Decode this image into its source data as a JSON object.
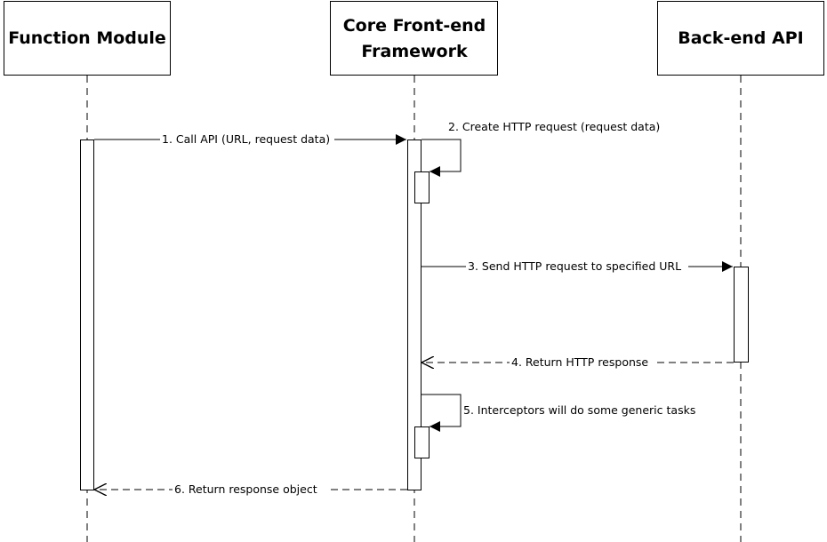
{
  "participants": [
    {
      "id": "function-module",
      "lines": [
        "Function Module"
      ]
    },
    {
      "id": "core-framework",
      "lines": [
        "Core Front-end",
        "Framework"
      ]
    },
    {
      "id": "backend-api",
      "lines": [
        "Back-end API"
      ]
    }
  ],
  "messages": [
    {
      "id": "msg-1",
      "label": "1. Call API (URL, request data)",
      "from": "function-module",
      "to": "core-framework",
      "kind": "sync"
    },
    {
      "id": "msg-2",
      "label": "2. Create HTTP request (request data)",
      "from": "core-framework",
      "to": "core-framework",
      "kind": "self"
    },
    {
      "id": "msg-3",
      "label": "3. Send HTTP request to specified URL",
      "from": "core-framework",
      "to": "backend-api",
      "kind": "sync"
    },
    {
      "id": "msg-4",
      "label": "4. Return HTTP response",
      "from": "backend-api",
      "to": "core-framework",
      "kind": "return"
    },
    {
      "id": "msg-5",
      "label": "5. Interceptors will do some generic tasks",
      "from": "core-framework",
      "to": "core-framework",
      "kind": "self"
    },
    {
      "id": "msg-6",
      "label": "6. Return response object",
      "from": "core-framework",
      "to": "function-module",
      "kind": "return"
    }
  ]
}
